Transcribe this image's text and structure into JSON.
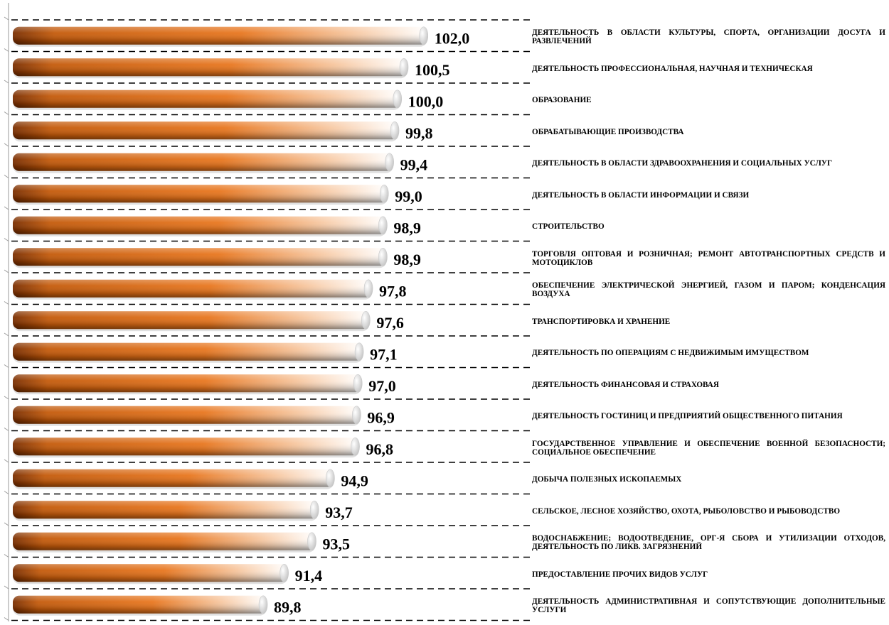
{
  "chart_data": {
    "type": "bar",
    "orientation": "horizontal",
    "categories": [
      "ДЕЯТЕЛЬНОСТЬ В ОБЛАСТИ КУЛЬТУРЫ, СПОРТА, ОРГАНИЗАЦИИ ДОСУГА И РАЗВЛЕЧЕНИЙ",
      "ДЕЯТЕЛЬНОСТЬ ПРОФЕССИОНАЛЬНАЯ, НАУЧНАЯ И ТЕХНИЧЕСКАЯ",
      "ОБРАЗОВАНИЕ",
      "ОБРАБАТЫВАЮЩИЕ ПРОИЗВОДСТВА",
      "ДЕЯТЕЛЬНОСТЬ В ОБЛАСТИ ЗДРАВООХРАНЕНИЯ И СОЦИАЛЬНЫХ УСЛУГ",
      "ДЕЯТЕЛЬНОСТЬ В ОБЛАСТИ ИНФОРМАЦИИ И СВЯЗИ",
      "СТРОИТЕЛЬСТВО",
      "ТОРГОВЛЯ ОПТОВАЯ И РОЗНИЧНАЯ; РЕМОНТ АВТОТРАНСПОРТНЫХ СРЕДСТВ И МОТОЦИКЛОВ",
      "ОБЕСПЕЧЕНИЕ ЭЛЕКТРИЧЕСКОЙ ЭНЕРГИЕЙ, ГАЗОМ И ПАРОМ; КОНДЕНСАЦИЯ ВОЗДУХА",
      "ТРАНСПОРТИРОВКА И ХРАНЕНИЕ",
      "ДЕЯТЕЛЬНОСТЬ ПО ОПЕРАЦИЯМ С НЕДВИЖИМЫМ ИМУЩЕСТВОМ",
      "ДЕЯТЕЛЬНОСТЬ ФИНАНСОВАЯ И СТРАХОВАЯ",
      "ДЕЯТЕЛЬНОСТЬ ГОСТИНИЦ И ПРЕДПРИЯТИЙ ОБЩЕСТВЕННОГО ПИТАНИЯ",
      "ГОСУДАРСТВЕННОЕ УПРАВЛЕНИЕ И ОБЕСПЕЧЕНИЕ ВОЕННОЙ БЕЗОПАСНОСТИ; СОЦИАЛЬНОЕ ОБЕСПЕЧЕНИЕ",
      "ДОБЫЧА ПОЛЕЗНЫХ ИСКОПАЕМЫХ",
      "СЕЛЬСКОЕ, ЛЕСНОЕ ХОЗЯЙСТВО, ОХОТА, РЫБОЛОВСТВО И РЫБОВОДСТВО",
      "ВОДОСНАБЖЕНИЕ; ВОДООТВЕДЕНИЕ, ОРГ-Я СБОРА И УТИЛИЗАЦИИ ОТХОДОВ, ДЕЯТЕЛЬНОСТЬ ПО ЛИКВ. ЗАГРЯЗНЕНИЙ",
      "ПРЕДОСТАВЛЕНИЕ ПРОЧИХ ВИДОВ УСЛУГ",
      "ДЕЯТЕЛЬНОСТЬ АДМИНИСТРАТИВНАЯ И СОПУТСТВУЮЩИЕ ДОПОЛНИТЕЛЬНЫЕ УСЛУГИ"
    ],
    "values": [
      102.0,
      100.5,
      100.0,
      99.8,
      99.4,
      99.0,
      98.9,
      98.9,
      97.8,
      97.6,
      97.1,
      97.0,
      96.9,
      96.8,
      94.9,
      93.7,
      93.5,
      91.4,
      89.8
    ],
    "value_labels": [
      "102,0",
      "100,5",
      "100,0",
      "99,8",
      "99,4",
      "99,0",
      "98,9",
      "98,9",
      "97,8",
      "97,6",
      "97,1",
      "97,0",
      "96,9",
      "96,8",
      "94,9",
      "93,7",
      "93,5",
      "91,4",
      "89,8"
    ],
    "xlim": [
      70.5,
      103.8
    ],
    "grid": true,
    "grid_style": "dashed",
    "legend": "none",
    "colors": {
      "bar_dark": "#7a2e00",
      "bar_mid": "#e8761e",
      "bar_light": "#ffffff",
      "bar_cap": "#d9d9d9",
      "grid": "#000000",
      "text": "#000000"
    }
  }
}
